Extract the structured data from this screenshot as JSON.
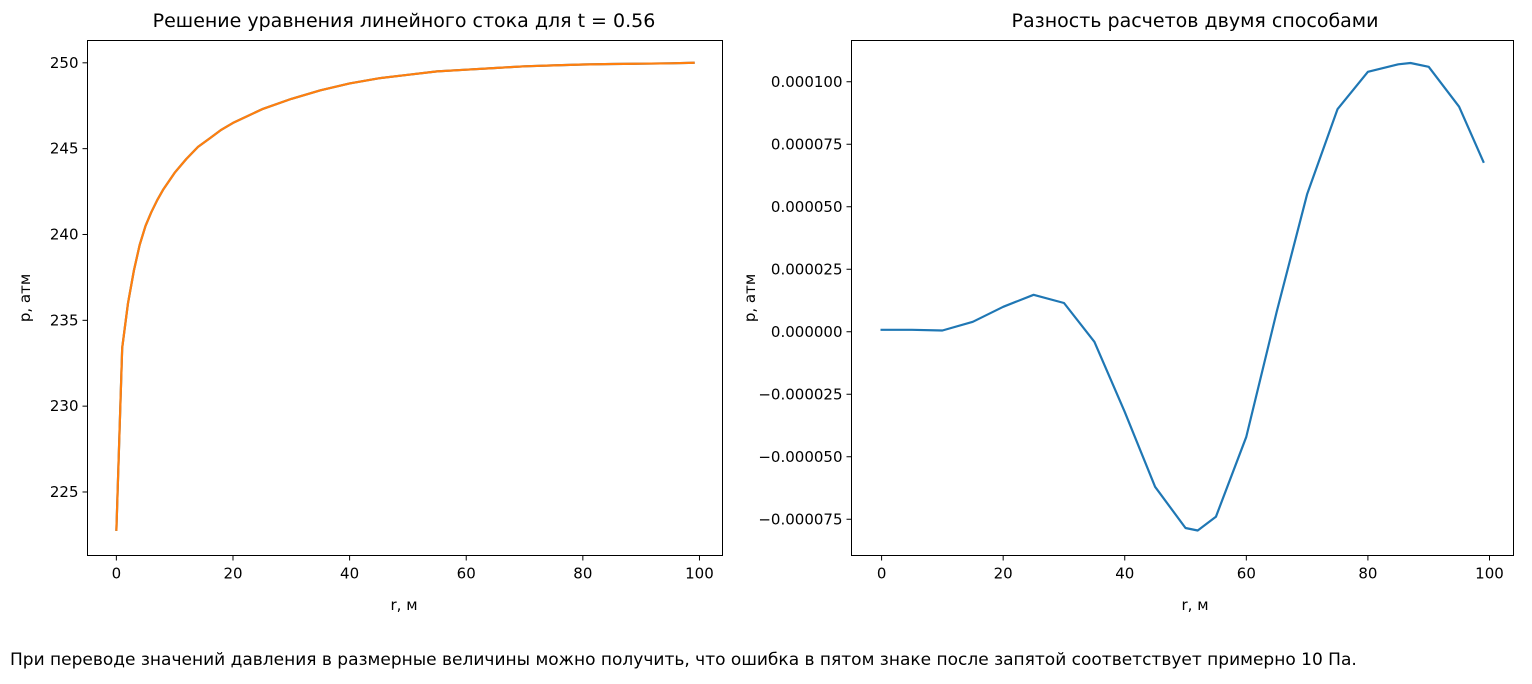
{
  "chart_data": [
    {
      "type": "line",
      "title": "Решение уравнения линейного стока для t = 0.56",
      "xlabel": "r, м",
      "ylabel": "p, атм",
      "xlim": [
        -4.95,
        103.95
      ],
      "ylim": [
        221.3,
        251.3
      ],
      "xticks": [
        0,
        20,
        40,
        60,
        80,
        100
      ],
      "yticks": [
        225,
        230,
        235,
        240,
        245,
        250
      ],
      "xtick_labels": [
        "0",
        "20",
        "40",
        "60",
        "80",
        "100"
      ],
      "ytick_labels": [
        "225",
        "230",
        "235",
        "240",
        "245",
        "250"
      ],
      "grid": false,
      "series": [
        {
          "color": "#1f77b4",
          "x": [
            0,
            1,
            2,
            3,
            4,
            5,
            6,
            7,
            8,
            10,
            12,
            14,
            16,
            18,
            20,
            25,
            30,
            35,
            40,
            45,
            50,
            55,
            60,
            65,
            70,
            75,
            80,
            85,
            90,
            95,
            99
          ],
          "y": [
            222.8,
            233.4,
            236.0,
            237.9,
            239.4,
            240.5,
            241.3,
            242.0,
            242.6,
            243.6,
            244.4,
            245.1,
            245.6,
            246.1,
            246.5,
            247.3,
            247.9,
            248.4,
            248.8,
            249.1,
            249.3,
            249.5,
            249.6,
            249.7,
            249.8,
            249.85,
            249.9,
            249.93,
            249.95,
            249.97,
            250.0
          ]
        },
        {
          "color": "#ff7f0e",
          "x": [
            0,
            1,
            2,
            3,
            4,
            5,
            6,
            7,
            8,
            10,
            12,
            14,
            16,
            18,
            20,
            25,
            30,
            35,
            40,
            45,
            50,
            55,
            60,
            65,
            70,
            75,
            80,
            85,
            90,
            95,
            99
          ],
          "y": [
            222.8,
            233.4,
            236.0,
            237.9,
            239.4,
            240.5,
            241.3,
            242.0,
            242.6,
            243.6,
            244.4,
            245.1,
            245.6,
            246.1,
            246.5,
            247.3,
            247.9,
            248.4,
            248.8,
            249.1,
            249.3,
            249.5,
            249.6,
            249.7,
            249.8,
            249.85,
            249.9,
            249.93,
            249.95,
            249.97,
            250.0
          ]
        }
      ]
    },
    {
      "type": "line",
      "title": "Разность расчетов двумя способами",
      "xlabel": "r, м",
      "ylabel": "p, атм",
      "xlim": [
        -4.95,
        103.95
      ],
      "ylim": [
        -8.95e-05,
        0.0001165
      ],
      "xticks": [
        0,
        20,
        40,
        60,
        80,
        100
      ],
      "yticks": [
        -7.5e-05,
        -5e-05,
        -2.5e-05,
        0,
        2.5e-05,
        5e-05,
        7.5e-05,
        0.0001
      ],
      "xtick_labels": [
        "0",
        "20",
        "40",
        "60",
        "80",
        "100"
      ],
      "ytick_labels": [
        "−0.000075",
        "−0.000050",
        "−0.000025",
        "0.000000",
        "0.000025",
        "0.000050",
        "0.000075",
        "0.000100"
      ],
      "grid": false,
      "series": [
        {
          "color": "#1f77b4",
          "x": [
            0,
            5,
            10,
            15,
            20,
            25,
            30,
            35,
            40,
            45,
            50,
            52,
            55,
            60,
            65,
            70,
            75,
            80,
            85,
            87,
            90,
            95,
            99
          ],
          "y": [
            8e-07,
            8e-07,
            5e-07,
            4e-06,
            1e-05,
            1.48e-05,
            1.15e-05,
            -4e-06,
            -3.2e-05,
            -6.2e-05,
            -7.85e-05,
            -7.95e-05,
            -7.4e-05,
            -4.2e-05,
            8e-06,
            5.5e-05,
            8.9e-05,
            0.000104,
            0.000107,
            0.0001075,
            0.000106,
            9e-05,
            6.8e-05
          ]
        }
      ]
    }
  ],
  "note": "При переводе значений давления в размерные величины можно получить, что ошибка в пятом знаке после запятой соответствует примерно 10 Па."
}
